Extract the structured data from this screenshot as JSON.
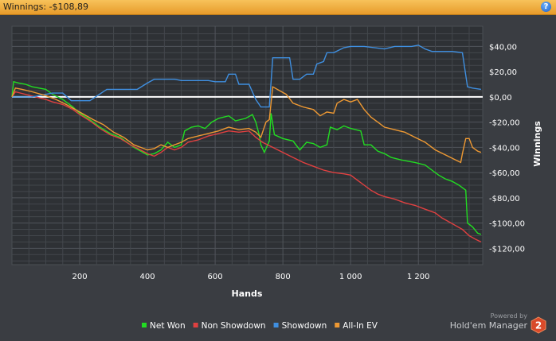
{
  "header": {
    "title": "Winnings: -$108,89"
  },
  "branding": {
    "powered_by": "Powered by",
    "product": "Hold'em Manager",
    "logo_text": "2"
  },
  "chart_data": {
    "type": "line",
    "xlabel": "Hands",
    "ylabel": "Winnings",
    "xlim": [
      0,
      1390
    ],
    "ylim": [
      -133,
      56
    ],
    "x_ticks": [
      200,
      400,
      600,
      800,
      1000,
      1200
    ],
    "x_tick_labels": [
      "200",
      "400",
      "600",
      "800",
      "1 000",
      "1 200"
    ],
    "y_ticks": [
      40,
      20,
      0,
      -20,
      -40,
      -60,
      -80,
      -100,
      -120
    ],
    "y_tick_labels": [
      "$40,00",
      "$20,00",
      "$0,00",
      "-$20,00",
      "-$40,00",
      "-$60,00",
      "-$80,00",
      "-$100,00",
      "-$120,00"
    ],
    "legend_position": "bottom",
    "series": [
      {
        "name": "Net Won",
        "color": "#22dd22",
        "points": [
          [
            0,
            0
          ],
          [
            5,
            12
          ],
          [
            20,
            11
          ],
          [
            40,
            10
          ],
          [
            60,
            8
          ],
          [
            80,
            7
          ],
          [
            100,
            6
          ],
          [
            120,
            2
          ],
          [
            150,
            -2
          ],
          [
            180,
            -8
          ],
          [
            200,
            -13
          ],
          [
            230,
            -18
          ],
          [
            260,
            -24
          ],
          [
            290,
            -29
          ],
          [
            320,
            -32
          ],
          [
            340,
            -36
          ],
          [
            360,
            -40
          ],
          [
            380,
            -43
          ],
          [
            400,
            -46
          ],
          [
            420,
            -45
          ],
          [
            440,
            -42
          ],
          [
            460,
            -36
          ],
          [
            480,
            -40
          ],
          [
            500,
            -38
          ],
          [
            510,
            -27
          ],
          [
            530,
            -24
          ],
          [
            550,
            -23
          ],
          [
            570,
            -25
          ],
          [
            590,
            -20
          ],
          [
            610,
            -17
          ],
          [
            640,
            -15
          ],
          [
            660,
            -19
          ],
          [
            690,
            -17
          ],
          [
            710,
            -14
          ],
          [
            720,
            -20
          ],
          [
            730,
            -30
          ],
          [
            735,
            -38
          ],
          [
            745,
            -44
          ],
          [
            760,
            -35
          ],
          [
            765,
            -13
          ],
          [
            775,
            -30
          ],
          [
            800,
            -33
          ],
          [
            830,
            -35
          ],
          [
            850,
            -42
          ],
          [
            870,
            -36
          ],
          [
            890,
            -37
          ],
          [
            910,
            -40
          ],
          [
            930,
            -38
          ],
          [
            940,
            -24
          ],
          [
            960,
            -26
          ],
          [
            980,
            -23
          ],
          [
            1000,
            -25
          ],
          [
            1030,
            -27
          ],
          [
            1040,
            -38
          ],
          [
            1060,
            -38
          ],
          [
            1080,
            -43
          ],
          [
            1100,
            -45
          ],
          [
            1120,
            -48
          ],
          [
            1150,
            -50
          ],
          [
            1190,
            -52
          ],
          [
            1220,
            -54
          ],
          [
            1240,
            -58
          ],
          [
            1260,
            -62
          ],
          [
            1280,
            -65
          ],
          [
            1300,
            -67
          ],
          [
            1320,
            -70
          ],
          [
            1340,
            -74
          ],
          [
            1345,
            -100
          ],
          [
            1360,
            -103
          ],
          [
            1375,
            -108
          ],
          [
            1385,
            -109
          ]
        ]
      },
      {
        "name": "Non Showdown",
        "color": "#e04040",
        "points": [
          [
            0,
            0
          ],
          [
            10,
            4
          ],
          [
            40,
            2
          ],
          [
            70,
            0
          ],
          [
            100,
            -2
          ],
          [
            120,
            -4
          ],
          [
            150,
            -6
          ],
          [
            180,
            -10
          ],
          [
            200,
            -14
          ],
          [
            230,
            -19
          ],
          [
            260,
            -25
          ],
          [
            290,
            -30
          ],
          [
            320,
            -33
          ],
          [
            350,
            -38
          ],
          [
            380,
            -42
          ],
          [
            400,
            -45
          ],
          [
            420,
            -47
          ],
          [
            440,
            -44
          ],
          [
            460,
            -40
          ],
          [
            480,
            -42
          ],
          [
            500,
            -40
          ],
          [
            520,
            -36
          ],
          [
            550,
            -34
          ],
          [
            580,
            -31
          ],
          [
            610,
            -29
          ],
          [
            640,
            -27
          ],
          [
            670,
            -28
          ],
          [
            700,
            -27
          ],
          [
            720,
            -32
          ],
          [
            740,
            -36
          ],
          [
            770,
            -40
          ],
          [
            800,
            -44
          ],
          [
            830,
            -48
          ],
          [
            860,
            -52
          ],
          [
            890,
            -55
          ],
          [
            920,
            -58
          ],
          [
            950,
            -60
          ],
          [
            980,
            -61
          ],
          [
            1000,
            -62
          ],
          [
            1020,
            -66
          ],
          [
            1040,
            -70
          ],
          [
            1060,
            -74
          ],
          [
            1080,
            -77
          ],
          [
            1100,
            -79
          ],
          [
            1130,
            -81
          ],
          [
            1160,
            -84
          ],
          [
            1190,
            -86
          ],
          [
            1220,
            -89
          ],
          [
            1250,
            -92
          ],
          [
            1270,
            -96
          ],
          [
            1290,
            -99
          ],
          [
            1310,
            -102
          ],
          [
            1330,
            -105
          ],
          [
            1350,
            -110
          ],
          [
            1370,
            -113
          ],
          [
            1385,
            -115
          ]
        ]
      },
      {
        "name": "Showdown",
        "color": "#3f8fe0",
        "points": [
          [
            0,
            0
          ],
          [
            60,
            0
          ],
          [
            120,
            3
          ],
          [
            150,
            3
          ],
          [
            175,
            -3
          ],
          [
            230,
            -3
          ],
          [
            280,
            6
          ],
          [
            370,
            6
          ],
          [
            400,
            11
          ],
          [
            420,
            14
          ],
          [
            480,
            14
          ],
          [
            500,
            13
          ],
          [
            580,
            13
          ],
          [
            600,
            12
          ],
          [
            630,
            12
          ],
          [
            640,
            18
          ],
          [
            660,
            18
          ],
          [
            670,
            10
          ],
          [
            700,
            10
          ],
          [
            720,
            -2
          ],
          [
            735,
            -8
          ],
          [
            760,
            -8
          ],
          [
            770,
            31
          ],
          [
            820,
            31
          ],
          [
            830,
            14
          ],
          [
            850,
            14
          ],
          [
            870,
            18
          ],
          [
            890,
            18
          ],
          [
            900,
            26
          ],
          [
            920,
            28
          ],
          [
            930,
            35
          ],
          [
            950,
            35
          ],
          [
            980,
            39
          ],
          [
            1000,
            40
          ],
          [
            1040,
            40
          ],
          [
            1100,
            38
          ],
          [
            1130,
            40
          ],
          [
            1180,
            40
          ],
          [
            1200,
            41
          ],
          [
            1220,
            38
          ],
          [
            1240,
            36
          ],
          [
            1300,
            36
          ],
          [
            1330,
            35
          ],
          [
            1345,
            8
          ],
          [
            1360,
            7
          ],
          [
            1385,
            6
          ]
        ]
      },
      {
        "name": "All-In EV",
        "color": "#ee9933",
        "points": [
          [
            0,
            0
          ],
          [
            10,
            7
          ],
          [
            30,
            6
          ],
          [
            60,
            4
          ],
          [
            100,
            1
          ],
          [
            130,
            -2
          ],
          [
            160,
            -6
          ],
          [
            200,
            -12
          ],
          [
            240,
            -18
          ],
          [
            270,
            -22
          ],
          [
            300,
            -28
          ],
          [
            330,
            -32
          ],
          [
            360,
            -38
          ],
          [
            380,
            -40
          ],
          [
            400,
            -42
          ],
          [
            420,
            -41
          ],
          [
            440,
            -38
          ],
          [
            460,
            -40
          ],
          [
            480,
            -38
          ],
          [
            500,
            -36
          ],
          [
            520,
            -33
          ],
          [
            550,
            -31
          ],
          [
            580,
            -29
          ],
          [
            610,
            -27
          ],
          [
            640,
            -24
          ],
          [
            670,
            -26
          ],
          [
            700,
            -25
          ],
          [
            720,
            -28
          ],
          [
            735,
            -32
          ],
          [
            750,
            -20
          ],
          [
            760,
            -18
          ],
          [
            770,
            8
          ],
          [
            790,
            5
          ],
          [
            810,
            2
          ],
          [
            830,
            -5
          ],
          [
            860,
            -8
          ],
          [
            890,
            -10
          ],
          [
            910,
            -15
          ],
          [
            930,
            -12
          ],
          [
            950,
            -13
          ],
          [
            960,
            -5
          ],
          [
            980,
            -2
          ],
          [
            1000,
            -4
          ],
          [
            1020,
            -2
          ],
          [
            1040,
            -10
          ],
          [
            1060,
            -16
          ],
          [
            1080,
            -20
          ],
          [
            1100,
            -24
          ],
          [
            1130,
            -26
          ],
          [
            1160,
            -28
          ],
          [
            1190,
            -32
          ],
          [
            1220,
            -36
          ],
          [
            1250,
            -42
          ],
          [
            1280,
            -46
          ],
          [
            1310,
            -50
          ],
          [
            1325,
            -52
          ],
          [
            1330,
            -45
          ],
          [
            1340,
            -33
          ],
          [
            1350,
            -33
          ],
          [
            1360,
            -40
          ],
          [
            1375,
            -43
          ],
          [
            1385,
            -44
          ]
        ]
      }
    ]
  }
}
